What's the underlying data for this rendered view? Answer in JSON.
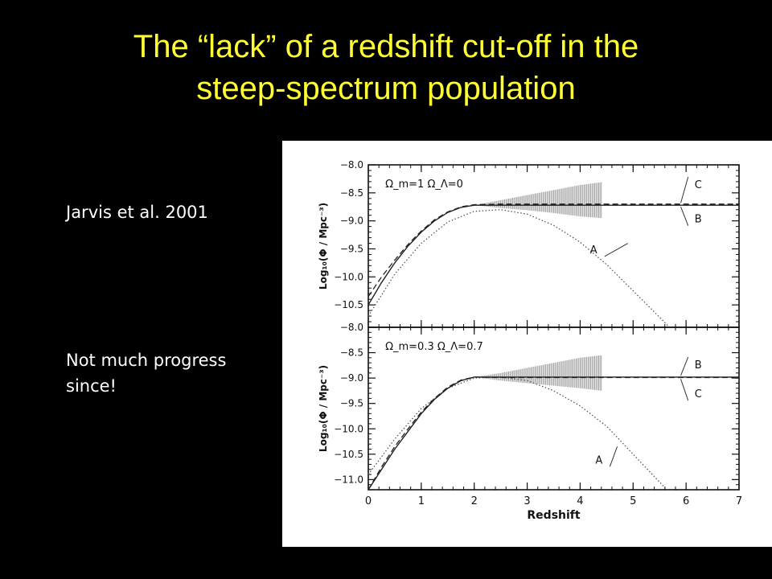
{
  "slide": {
    "title_line1": "The “lack” of a redshift cut-off in the",
    "title_line2": "steep-spectrum population",
    "citation": "Jarvis et al. 2001",
    "note_line1": "Not much progress",
    "note_line2": "since!"
  },
  "chart_data": [
    {
      "type": "line",
      "panel": "top",
      "annotation": "Ω_m=1  Ω_Λ=0",
      "xlabel": "",
      "ylabel": "Log₁₀(Φ / Mpc⁻³)",
      "xlim": [
        0,
        7
      ],
      "ylim": [
        -10.9,
        -8.0
      ],
      "yticks": [
        -8.0,
        -8.5,
        -9.0,
        -9.5,
        -10.0,
        -10.5
      ],
      "series": [
        {
          "name": "A",
          "style": "dotted",
          "x": [
            0.0,
            0.5,
            1.0,
            1.5,
            2.0,
            2.5,
            3.0,
            3.5,
            4.0,
            4.5,
            5.0,
            5.5,
            6.0
          ],
          "y": [
            -10.7,
            -9.95,
            -9.4,
            -9.02,
            -8.83,
            -8.8,
            -8.88,
            -9.08,
            -9.38,
            -9.78,
            -10.25,
            -10.72,
            -11.2
          ]
        },
        {
          "name": "B",
          "style": "solid",
          "x": [
            0.0,
            0.25,
            0.5,
            0.75,
            1.0,
            1.25,
            1.5,
            1.75,
            2.0,
            2.5,
            3.0,
            4.0,
            5.0,
            6.0,
            7.0
          ],
          "y": [
            -10.5,
            -10.1,
            -9.75,
            -9.45,
            -9.2,
            -9.0,
            -8.85,
            -8.76,
            -8.72,
            -8.72,
            -8.72,
            -8.72,
            -8.72,
            -8.72,
            -8.72
          ]
        },
        {
          "name": "C",
          "style": "dashed",
          "x": [
            0.0,
            0.25,
            0.5,
            0.75,
            1.0,
            1.25,
            1.5,
            1.75,
            2.0,
            2.5,
            3.0,
            4.0,
            5.0,
            6.0,
            7.0
          ],
          "y": [
            -10.35,
            -10.0,
            -9.7,
            -9.42,
            -9.18,
            -8.98,
            -8.84,
            -8.75,
            -8.71,
            -8.7,
            -8.7,
            -8.7,
            -8.7,
            -8.7,
            -8.7
          ]
        }
      ],
      "band": {
        "x": [
          2.0,
          2.5,
          3.0,
          3.5,
          4.0,
          4.4
        ],
        "upper": [
          -8.72,
          -8.63,
          -8.54,
          -8.45,
          -8.36,
          -8.31
        ],
        "lower": [
          -8.72,
          -8.77,
          -8.81,
          -8.86,
          -8.92,
          -8.95
        ]
      },
      "labels": [
        {
          "text": "C",
          "x": 6.1,
          "y": -8.3,
          "tx": 5.9,
          "ty": -8.68
        },
        {
          "text": "B",
          "x": 6.1,
          "y": -9.0,
          "tx": 5.9,
          "ty": -8.75
        },
        {
          "text": "A",
          "x": 4.4,
          "y": -9.55,
          "tx": 4.9,
          "ty": -9.4
        }
      ]
    },
    {
      "type": "line",
      "panel": "bottom",
      "annotation": "Ω_m=0.3  Ω_Λ=0.7",
      "xlabel": "Redshift",
      "ylabel": "Log₁₀(Φ / Mpc⁻³)",
      "xlim": [
        0,
        7
      ],
      "ylim": [
        -11.2,
        -8.0
      ],
      "xticks": [
        0,
        1,
        2,
        3,
        4,
        5,
        6,
        7
      ],
      "yticks": [
        -8.0,
        -8.5,
        -9.0,
        -9.5,
        -10.0,
        -10.5,
        -11.0
      ],
      "series": [
        {
          "name": "A",
          "style": "dotted",
          "x": [
            0.0,
            0.5,
            1.0,
            1.5,
            2.0,
            2.5,
            3.0,
            3.5,
            4.0,
            4.5,
            5.0,
            5.5,
            6.0
          ],
          "y": [
            -10.9,
            -10.2,
            -9.6,
            -9.2,
            -9.0,
            -8.98,
            -9.05,
            -9.25,
            -9.55,
            -9.95,
            -10.5,
            -11.05,
            -11.6
          ]
        },
        {
          "name": "B",
          "style": "solid",
          "x": [
            0.0,
            0.25,
            0.5,
            0.75,
            1.0,
            1.25,
            1.5,
            1.75,
            2.0,
            2.5,
            3.0,
            4.0,
            5.0,
            6.0,
            7.0
          ],
          "y": [
            -11.2,
            -10.8,
            -10.4,
            -10.05,
            -9.7,
            -9.42,
            -9.2,
            -9.05,
            -8.98,
            -8.98,
            -8.98,
            -8.98,
            -8.98,
            -8.98,
            -8.98
          ]
        },
        {
          "name": "C",
          "style": "dashed",
          "x": [
            0.0,
            0.25,
            0.5,
            0.75,
            1.0,
            1.25,
            1.5,
            1.75,
            2.0,
            2.5,
            3.0,
            4.0,
            5.0,
            6.0,
            7.0
          ],
          "y": [
            -11.2,
            -10.75,
            -10.35,
            -10.0,
            -9.67,
            -9.4,
            -9.18,
            -9.04,
            -8.98,
            -8.99,
            -8.99,
            -8.99,
            -8.99,
            -8.99,
            -8.99
          ]
        }
      ],
      "band": {
        "x": [
          2.0,
          2.5,
          3.0,
          3.5,
          4.0,
          4.4
        ],
        "upper": [
          -8.98,
          -8.9,
          -8.8,
          -8.7,
          -8.6,
          -8.55
        ],
        "lower": [
          -8.98,
          -9.05,
          -9.1,
          -9.15,
          -9.2,
          -9.25
        ]
      },
      "labels": [
        {
          "text": "B",
          "x": 6.1,
          "y": -8.68,
          "tx": 5.9,
          "ty": -8.95
        },
        {
          "text": "C",
          "x": 6.1,
          "y": -9.35,
          "tx": 5.9,
          "ty": -9.02
        },
        {
          "text": "A",
          "x": 4.5,
          "y": -10.65,
          "tx": 4.7,
          "ty": -10.35
        }
      ]
    }
  ]
}
